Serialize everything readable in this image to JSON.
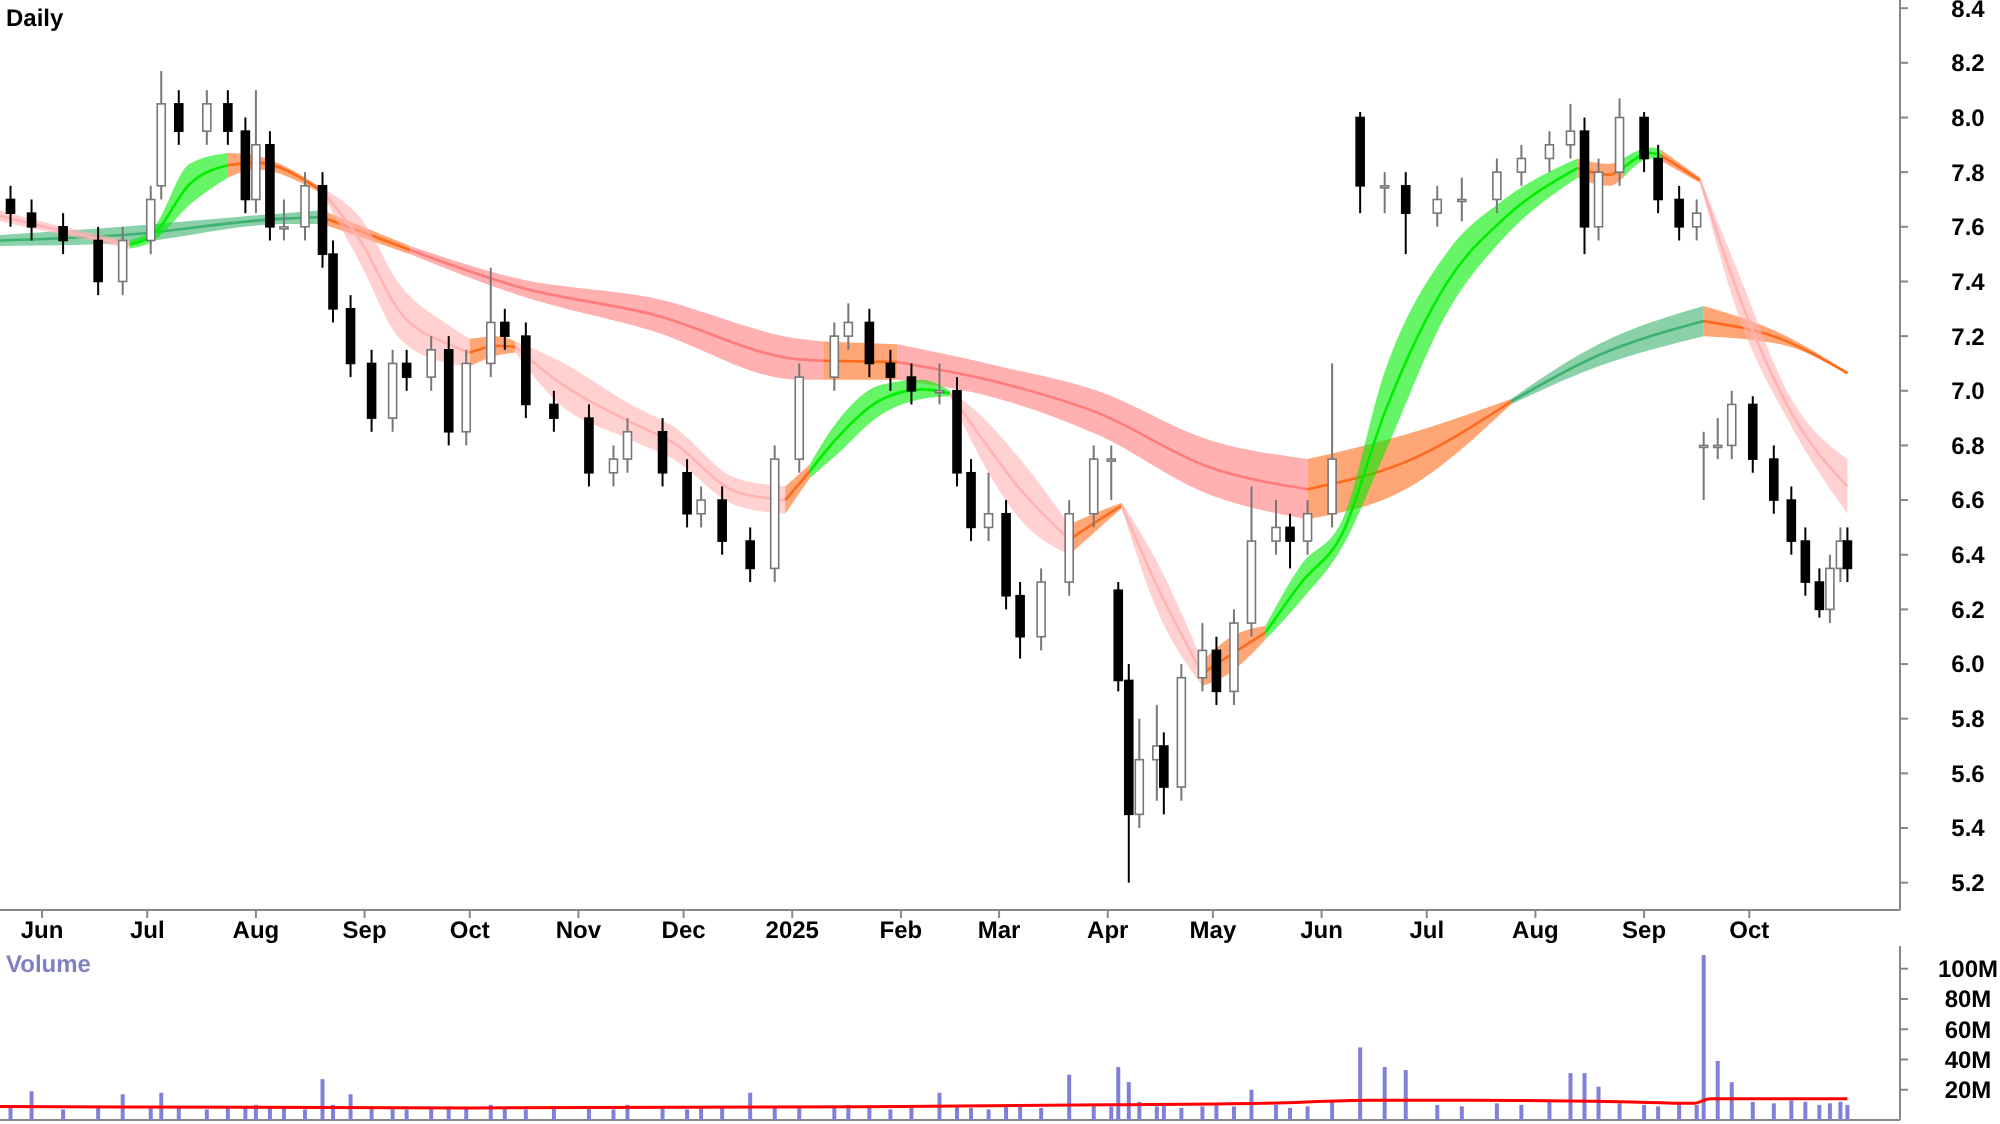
{
  "chart_data": [
    {
      "type": "candlestick",
      "title": "Daily",
      "x": [
        "2024-05-23",
        "2024-05-29",
        "2024-06-07",
        "2024-06-17",
        "2024-06-24",
        "2024-07-02",
        "2024-07-05",
        "2024-07-10",
        "2024-07-18",
        "2024-07-24",
        "2024-07-29",
        "2024-08-01",
        "2024-08-05",
        "2024-08-09",
        "2024-08-15",
        "2024-08-20",
        "2024-08-23",
        "2024-08-28",
        "2024-09-03",
        "2024-09-09",
        "2024-09-13",
        "2024-09-20",
        "2024-09-25",
        "2024-09-30",
        "2024-10-07",
        "2024-10-11",
        "2024-10-17",
        "2024-10-25",
        "2024-11-04",
        "2024-11-11",
        "2024-11-15",
        "2024-11-25",
        "2024-12-02",
        "2024-12-06",
        "2024-12-12",
        "2024-12-20",
        "2024-12-27",
        "2025-01-03",
        "2025-01-13",
        "2025-01-17",
        "2025-01-23",
        "2025-01-29",
        "2025-02-04",
        "2025-02-12",
        "2025-02-17",
        "2025-02-21",
        "2025-02-26",
        "2025-03-03",
        "2025-03-07",
        "2025-03-13",
        "2025-03-21",
        "2025-03-28",
        "2025-04-02",
        "2025-04-04",
        "2025-04-07",
        "2025-04-10",
        "2025-04-15",
        "2025-04-17",
        "2025-04-22",
        "2025-04-28",
        "2025-05-02",
        "2025-05-07",
        "2025-05-12",
        "2025-05-19",
        "2025-05-23",
        "2025-05-28",
        "2025-06-04",
        "2025-06-12",
        "2025-06-19",
        "2025-06-25",
        "2025-07-04",
        "2025-07-11",
        "2025-07-21",
        "2025-07-28",
        "2025-08-05",
        "2025-08-11",
        "2025-08-15",
        "2025-08-19",
        "2025-08-25",
        "2025-09-01",
        "2025-09-05",
        "2025-09-11",
        "2025-09-16",
        "2025-09-18",
        "2025-09-22",
        "2025-09-26",
        "2025-10-02",
        "2025-10-08",
        "2025-10-13",
        "2025-10-17",
        "2025-10-21",
        "2025-10-24",
        "2025-10-27",
        "2025-10-29"
      ],
      "ohlc": [
        [
          7.7,
          7.75,
          7.6,
          7.65
        ],
        [
          7.65,
          7.7,
          7.55,
          7.6
        ],
        [
          7.6,
          7.65,
          7.5,
          7.55
        ],
        [
          7.55,
          7.6,
          7.35,
          7.4
        ],
        [
          7.4,
          7.6,
          7.35,
          7.55
        ],
        [
          7.55,
          7.75,
          7.5,
          7.7
        ],
        [
          7.75,
          8.17,
          7.7,
          8.05
        ],
        [
          8.05,
          8.1,
          7.9,
          7.95
        ],
        [
          7.95,
          8.1,
          7.9,
          8.05
        ],
        [
          8.05,
          8.1,
          7.9,
          7.95
        ],
        [
          7.95,
          8.0,
          7.65,
          7.7
        ],
        [
          7.7,
          8.1,
          7.65,
          7.9
        ],
        [
          7.9,
          7.95,
          7.55,
          7.6
        ],
        [
          7.6,
          7.7,
          7.55,
          7.6
        ],
        [
          7.6,
          7.8,
          7.55,
          7.75
        ],
        [
          7.75,
          7.8,
          7.45,
          7.5
        ],
        [
          7.5,
          7.55,
          7.25,
          7.3
        ],
        [
          7.3,
          7.35,
          7.05,
          7.1
        ],
        [
          7.1,
          7.15,
          6.85,
          6.9
        ],
        [
          6.9,
          7.15,
          6.85,
          7.1
        ],
        [
          7.1,
          7.15,
          7.0,
          7.05
        ],
        [
          7.05,
          7.2,
          7.0,
          7.15
        ],
        [
          7.15,
          7.2,
          6.8,
          6.85
        ],
        [
          6.85,
          7.15,
          6.8,
          7.1
        ],
        [
          7.1,
          7.45,
          7.05,
          7.25
        ],
        [
          7.25,
          7.3,
          7.15,
          7.2
        ],
        [
          7.2,
          7.25,
          6.9,
          6.95
        ],
        [
          6.95,
          7.0,
          6.85,
          6.9
        ],
        [
          6.9,
          6.95,
          6.65,
          6.7
        ],
        [
          6.7,
          6.8,
          6.65,
          6.75
        ],
        [
          6.75,
          6.9,
          6.7,
          6.85
        ],
        [
          6.85,
          6.9,
          6.65,
          6.7
        ],
        [
          6.7,
          6.75,
          6.5,
          6.55
        ],
        [
          6.55,
          6.65,
          6.5,
          6.6
        ],
        [
          6.6,
          6.65,
          6.4,
          6.45
        ],
        [
          6.45,
          6.5,
          6.3,
          6.35
        ],
        [
          6.35,
          6.8,
          6.3,
          6.75
        ],
        [
          6.75,
          7.1,
          6.7,
          7.05
        ],
        [
          7.05,
          7.25,
          7.0,
          7.2
        ],
        [
          7.2,
          7.32,
          7.15,
          7.25
        ],
        [
          7.25,
          7.3,
          7.05,
          7.1
        ],
        [
          7.1,
          7.15,
          7.0,
          7.05
        ],
        [
          7.05,
          7.1,
          6.95,
          7.0
        ],
        [
          7.0,
          7.1,
          6.95,
          7.0
        ],
        [
          7.0,
          7.05,
          6.65,
          6.7
        ],
        [
          6.7,
          6.75,
          6.45,
          6.5
        ],
        [
          6.5,
          6.7,
          6.45,
          6.55
        ],
        [
          6.55,
          6.6,
          6.2,
          6.25
        ],
        [
          6.25,
          6.3,
          6.02,
          6.1
        ],
        [
          6.1,
          6.35,
          6.05,
          6.3
        ],
        [
          6.3,
          6.6,
          6.25,
          6.55
        ],
        [
          6.55,
          6.8,
          6.5,
          6.75
        ],
        [
          6.75,
          6.8,
          6.6,
          6.75
        ],
        [
          6.27,
          6.3,
          5.9,
          5.94
        ],
        [
          5.94,
          6.0,
          5.2,
          5.45
        ],
        [
          5.45,
          5.8,
          5.4,
          5.65
        ],
        [
          5.65,
          5.85,
          5.5,
          5.7
        ],
        [
          5.7,
          5.75,
          5.45,
          5.55
        ],
        [
          5.55,
          6.0,
          5.5,
          5.95
        ],
        [
          5.95,
          6.15,
          5.9,
          6.05
        ],
        [
          6.05,
          6.1,
          5.85,
          5.9
        ],
        [
          5.9,
          6.2,
          5.85,
          6.15
        ],
        [
          6.15,
          6.65,
          6.1,
          6.45
        ],
        [
          6.45,
          6.6,
          6.4,
          6.5
        ],
        [
          6.5,
          6.55,
          6.35,
          6.45
        ],
        [
          6.45,
          6.6,
          6.4,
          6.55
        ],
        [
          6.55,
          7.1,
          6.5,
          6.75
        ],
        [
          8.0,
          8.02,
          7.65,
          7.75
        ],
        [
          7.75,
          7.8,
          7.65,
          7.75
        ],
        [
          7.75,
          7.8,
          7.5,
          7.65
        ],
        [
          7.65,
          7.75,
          7.6,
          7.7
        ],
        [
          7.7,
          7.78,
          7.62,
          7.7
        ],
        [
          7.7,
          7.85,
          7.65,
          7.8
        ],
        [
          7.8,
          7.9,
          7.75,
          7.85
        ],
        [
          7.85,
          7.95,
          7.8,
          7.9
        ],
        [
          7.9,
          8.05,
          7.85,
          7.95
        ],
        [
          7.95,
          8.0,
          7.5,
          7.6
        ],
        [
          7.6,
          7.85,
          7.55,
          7.8
        ],
        [
          7.8,
          8.07,
          7.75,
          8.0
        ],
        [
          8.0,
          8.02,
          7.8,
          7.85
        ],
        [
          7.85,
          7.9,
          7.65,
          7.7
        ],
        [
          7.7,
          7.75,
          7.55,
          7.6
        ],
        [
          7.6,
          7.7,
          7.55,
          7.65
        ],
        [
          6.8,
          6.85,
          6.6,
          6.8
        ],
        [
          6.8,
          6.9,
          6.75,
          6.8
        ],
        [
          6.8,
          7.0,
          6.75,
          6.95
        ],
        [
          6.95,
          6.98,
          6.7,
          6.75
        ],
        [
          6.75,
          6.8,
          6.55,
          6.6
        ],
        [
          6.6,
          6.65,
          6.4,
          6.45
        ],
        [
          6.45,
          6.5,
          6.25,
          6.3
        ],
        [
          6.3,
          6.35,
          6.17,
          6.2
        ],
        [
          6.2,
          6.4,
          6.15,
          6.35
        ],
        [
          6.35,
          6.5,
          6.3,
          6.45
        ],
        [
          6.45,
          6.5,
          6.3,
          6.35
        ]
      ],
      "series": [
        {
          "type": "line",
          "color": "#3cb371",
          "x": [
            "2024-05-20",
            "2024-06-24",
            "2024-08-09",
            "2024-08-20"
          ],
          "values": [
            7.55,
            7.57,
            7.63,
            7.635
          ],
          "lower": [
            7.53,
            7.54,
            7.61,
            7.61
          ],
          "upper": [
            7.57,
            7.6,
            7.65,
            7.66
          ]
        },
        {
          "type": "line",
          "color": "#ff6a1a",
          "x": [
            "2024-08-20",
            "2024-09-14"
          ],
          "values": [
            7.635,
            7.515
          ],
          "lower": [
            7.61,
            7.5
          ],
          "upper": [
            7.66,
            7.53
          ]
        },
        {
          "type": "line",
          "color": "#ff7b7b",
          "x": [
            "2024-09-14",
            "2024-10-15",
            "2024-11-22",
            "2025-01-03",
            "2025-01-10"
          ],
          "values": [
            7.515,
            7.38,
            7.28,
            7.115,
            7.11
          ],
          "lower": [
            7.5,
            7.35,
            7.22,
            7.04,
            7.04
          ],
          "upper": [
            7.53,
            7.41,
            7.34,
            7.19,
            7.18
          ]
        },
        {
          "type": "line",
          "color": "#ff6a1a",
          "x": [
            "2025-01-10",
            "2025-01-31"
          ],
          "values": [
            7.11,
            7.105
          ],
          "lower": [
            7.04,
            7.04
          ],
          "upper": [
            7.18,
            7.17
          ]
        },
        {
          "type": "line",
          "color": "#ff7b7b",
          "x": [
            "2025-01-31",
            "2025-03-01",
            "2025-03-29",
            "2025-04-30",
            "2025-05-28"
          ],
          "values": [
            7.105,
            7.03,
            6.92,
            6.72,
            6.64
          ],
          "lower": [
            7.04,
            6.97,
            6.84,
            6.62,
            6.53
          ],
          "upper": [
            7.17,
            7.09,
            7.0,
            6.82,
            6.75
          ]
        },
        {
          "type": "line",
          "color": "#ff6a1a",
          "x": [
            "2025-05-28",
            "2025-06-25",
            "2025-07-25"
          ],
          "values": [
            6.64,
            6.74,
            6.96
          ],
          "lower": [
            6.53,
            6.64,
            6.95
          ],
          "upper": [
            6.75,
            6.84,
            6.97
          ]
        },
        {
          "type": "line",
          "color": "#3cb371",
          "x": [
            "2025-07-25",
            "2025-08-19",
            "2025-09-18"
          ],
          "values": [
            6.96,
            7.13,
            7.255
          ],
          "lower": [
            6.95,
            7.09,
            7.2
          ],
          "upper": [
            6.97,
            7.17,
            7.31
          ]
        },
        {
          "type": "line",
          "color": "#ff6a1a",
          "x": [
            "2025-09-18",
            "2025-10-10",
            "2025-10-29"
          ],
          "values": [
            7.255,
            7.19,
            7.065
          ],
          "lower": [
            7.2,
            7.17,
            7.06
          ],
          "upper": [
            7.31,
            7.21,
            7.07
          ]
        },
        {
          "type": "line",
          "color": "#ffb3b3",
          "x": [
            "2024-05-20",
            "2024-06-07",
            "2024-06-26"
          ],
          "values": [
            7.64,
            7.585,
            7.535
          ],
          "lower": [
            7.62,
            7.57,
            7.52
          ],
          "upper": [
            7.66,
            7.6,
            7.55
          ]
        },
        {
          "type": "line",
          "color": "#00ee00",
          "x": [
            "2024-06-26",
            "2024-07-03",
            "2024-07-13",
            "2024-07-24"
          ],
          "values": [
            7.535,
            7.575,
            7.755,
            7.825
          ],
          "lower": [
            7.52,
            7.55,
            7.68,
            7.78
          ],
          "upper": [
            7.55,
            7.6,
            7.83,
            7.87
          ]
        },
        {
          "type": "line",
          "color": "#ff6a1a",
          "x": [
            "2024-07-24",
            "2024-08-01",
            "2024-08-20"
          ],
          "values": [
            7.825,
            7.835,
            7.73
          ],
          "lower": [
            7.78,
            7.81,
            7.72
          ],
          "upper": [
            7.87,
            7.86,
            7.74
          ]
        },
        {
          "type": "line",
          "color": "#ffb3b3",
          "x": [
            "2024-08-20",
            "2024-08-31",
            "2024-09-11",
            "2024-09-25",
            "2024-10-01"
          ],
          "values": [
            7.73,
            7.545,
            7.29,
            7.17,
            7.14
          ],
          "lower": [
            7.72,
            7.46,
            7.19,
            7.1,
            7.09
          ],
          "upper": [
            7.74,
            7.63,
            7.39,
            7.24,
            7.19
          ]
        },
        {
          "type": "line",
          "color": "#ff6a1a",
          "x": [
            "2024-10-01",
            "2024-10-09",
            "2024-10-14"
          ],
          "values": [
            7.14,
            7.165,
            7.16
          ],
          "lower": [
            7.09,
            7.13,
            7.14
          ],
          "upper": [
            7.19,
            7.2,
            7.18
          ]
        },
        {
          "type": "line",
          "color": "#ffb3b3",
          "x": [
            "2024-10-14",
            "2024-10-25",
            "2024-11-16",
            "2024-11-28",
            "2024-12-16",
            "2024-12-30"
          ],
          "values": [
            7.16,
            7.045,
            6.885,
            6.81,
            6.63,
            6.6
          ],
          "lower": [
            7.14,
            6.97,
            6.82,
            6.75,
            6.58,
            6.55
          ],
          "upper": [
            7.18,
            7.12,
            6.95,
            6.87,
            6.68,
            6.65
          ]
        },
        {
          "type": "line",
          "color": "#ff6a1a",
          "x": [
            "2024-12-30",
            "2025-01-06"
          ],
          "values": [
            6.6,
            6.705
          ],
          "lower": [
            6.55,
            6.68
          ],
          "upper": [
            6.65,
            6.73
          ]
        },
        {
          "type": "line",
          "color": "#00ee00",
          "x": [
            "2025-01-06",
            "2025-01-14",
            "2025-01-26",
            "2025-02-07",
            "2025-02-15"
          ],
          "values": [
            6.705,
            6.83,
            6.965,
            7.005,
            6.99
          ],
          "lower": [
            6.68,
            6.77,
            6.91,
            6.97,
            6.98
          ],
          "upper": [
            6.73,
            6.89,
            7.02,
            7.04,
            7.0
          ]
        },
        {
          "type": "line",
          "color": "#ffb3b3",
          "x": [
            "2025-02-15",
            "2025-02-23",
            "2025-03-07",
            "2025-03-21"
          ],
          "values": [
            6.99,
            6.845,
            6.64,
            6.455
          ],
          "lower": [
            6.98,
            6.77,
            6.53,
            6.4
          ],
          "upper": [
            7.0,
            6.92,
            6.75,
            6.51
          ]
        },
        {
          "type": "line",
          "color": "#ff6a1a",
          "x": [
            "2025-03-21",
            "2025-03-28",
            "2025-04-05"
          ],
          "values": [
            6.455,
            6.515,
            6.58
          ],
          "lower": [
            6.4,
            6.48,
            6.57
          ],
          "upper": [
            6.51,
            6.55,
            6.59
          ]
        },
        {
          "type": "line",
          "color": "#ffb3b3",
          "x": [
            "2025-04-05",
            "2025-04-14",
            "2025-04-28"
          ],
          "values": [
            6.58,
            6.315,
            5.965
          ],
          "lower": [
            6.57,
            6.23,
            5.92
          ],
          "upper": [
            6.59,
            6.4,
            6.01
          ]
        },
        {
          "type": "line",
          "color": "#ff6a1a",
          "x": [
            "2025-04-28",
            "2025-05-05",
            "2025-05-16"
          ],
          "values": [
            5.965,
            6.025,
            6.115
          ],
          "lower": [
            5.92,
            5.96,
            6.09
          ],
          "upper": [
            6.01,
            6.09,
            6.14
          ]
        },
        {
          "type": "line",
          "color": "#00ee00",
          "x": [
            "2025-05-16",
            "2025-05-26",
            "2025-06-07",
            "2025-06-19",
            "2025-07-07",
            "2025-07-23",
            "2025-08-13"
          ],
          "values": [
            6.115,
            6.295,
            6.48,
            6.92,
            7.4,
            7.63,
            7.815
          ],
          "lower": [
            6.09,
            6.23,
            6.43,
            6.77,
            7.29,
            7.56,
            7.78
          ],
          "upper": [
            6.14,
            6.36,
            6.53,
            7.07,
            7.51,
            7.7,
            7.85
          ]
        },
        {
          "type": "line",
          "color": "#ff6a1a",
          "x": [
            "2025-08-13",
            "2025-08-22",
            "2025-08-26"
          ],
          "values": [
            7.815,
            7.79,
            7.815
          ],
          "lower": [
            7.78,
            7.75,
            7.78
          ],
          "upper": [
            7.85,
            7.83,
            7.85
          ]
        },
        {
          "type": "line",
          "color": "#00ee00",
          "x": [
            "2025-08-26",
            "2025-09-03",
            "2025-09-06"
          ],
          "values": [
            7.815,
            7.87,
            7.86
          ],
          "lower": [
            7.78,
            7.85,
            7.84
          ],
          "upper": [
            7.85,
            7.89,
            7.88
          ]
        },
        {
          "type": "line",
          "color": "#ff6a1a",
          "x": [
            "2025-09-06",
            "2025-09-17"
          ],
          "values": [
            7.86,
            7.77
          ],
          "lower": [
            7.84,
            7.76
          ],
          "upper": [
            7.88,
            7.78
          ]
        },
        {
          "type": "line",
          "color": "#ffb3b3",
          "x": [
            "2025-09-17",
            "2025-09-27",
            "2025-10-13",
            "2025-10-29"
          ],
          "values": [
            7.77,
            7.385,
            6.92,
            6.65
          ],
          "lower": [
            7.76,
            7.31,
            6.87,
            6.55
          ],
          "upper": [
            7.78,
            7.46,
            6.97,
            6.75
          ]
        }
      ],
      "xlim": [
        "2024-05-20",
        "2025-11-13"
      ],
      "xticks": [
        {
          "value": "2024-06-01",
          "label": "Jun"
        },
        {
          "value": "2024-07-01",
          "label": "Jul"
        },
        {
          "value": "2024-08-01",
          "label": "Aug"
        },
        {
          "value": "2024-09-01",
          "label": "Sep"
        },
        {
          "value": "2024-10-01",
          "label": "Oct"
        },
        {
          "value": "2024-11-01",
          "label": "Nov"
        },
        {
          "value": "2024-12-01",
          "label": "Dec"
        },
        {
          "value": "2025-01-01",
          "label": "2025"
        },
        {
          "value": "2025-02-01",
          "label": "Feb"
        },
        {
          "value": "2025-03-01",
          "label": "Mar"
        },
        {
          "value": "2025-04-01",
          "label": "Apr"
        },
        {
          "value": "2025-05-01",
          "label": "May"
        },
        {
          "value": "2025-06-01",
          "label": "Jun"
        },
        {
          "value": "2025-07-01",
          "label": "Jul"
        },
        {
          "value": "2025-08-01",
          "label": "Aug"
        },
        {
          "value": "2025-09-01",
          "label": "Sep"
        },
        {
          "value": "2025-10-01",
          "label": "Oct"
        }
      ],
      "ylim": [
        5.1,
        8.43
      ],
      "yticks": [
        5.2,
        5.4,
        5.6,
        5.8,
        {
          "value": 6,
          "label": "6.0"
        },
        6.2,
        6.4,
        6.6,
        6.8,
        {
          "value": 7,
          "label": "7.0"
        },
        7.2,
        7.4,
        7.6,
        7.8,
        {
          "value": 8,
          "label": "8.0"
        },
        8.2,
        8.4
      ]
    },
    {
      "type": "bar",
      "title": "Volume",
      "tick_labels": "y",
      "series": [
        {
          "type": "bar",
          "color": "#8080d8",
          "x": [
            "2024-05-23",
            "2024-05-29",
            "2024-06-07",
            "2024-06-17",
            "2024-06-24",
            "2024-07-02",
            "2024-07-05",
            "2024-07-10",
            "2024-07-18",
            "2024-07-24",
            "2024-07-29",
            "2024-08-01",
            "2024-08-05",
            "2024-08-09",
            "2024-08-15",
            "2024-08-20",
            "2024-08-23",
            "2024-08-28",
            "2024-09-03",
            "2024-09-09",
            "2024-09-13",
            "2024-09-20",
            "2024-09-25",
            "2024-09-30",
            "2024-10-07",
            "2024-10-11",
            "2024-10-17",
            "2024-10-25",
            "2024-11-04",
            "2024-11-11",
            "2024-11-15",
            "2024-11-25",
            "2024-12-02",
            "2024-12-06",
            "2024-12-12",
            "2024-12-20",
            "2024-12-27",
            "2025-01-03",
            "2025-01-13",
            "2025-01-17",
            "2025-01-23",
            "2025-01-29",
            "2025-02-04",
            "2025-02-12",
            "2025-02-17",
            "2025-02-21",
            "2025-02-26",
            "2025-03-03",
            "2025-03-07",
            "2025-03-13",
            "2025-03-21",
            "2025-03-28",
            "2025-04-02",
            "2025-04-04",
            "2025-04-07",
            "2025-04-10",
            "2025-04-15",
            "2025-04-17",
            "2025-04-22",
            "2025-04-28",
            "2025-05-02",
            "2025-05-07",
            "2025-05-12",
            "2025-05-19",
            "2025-05-23",
            "2025-05-28",
            "2025-06-04",
            "2025-06-12",
            "2025-06-19",
            "2025-06-25",
            "2025-07-04",
            "2025-07-11",
            "2025-07-21",
            "2025-07-28",
            "2025-08-05",
            "2025-08-11",
            "2025-08-15",
            "2025-08-19",
            "2025-08-25",
            "2025-09-01",
            "2025-09-05",
            "2025-09-11",
            "2025-09-16",
            "2025-09-18",
            "2025-09-22",
            "2025-09-26",
            "2025-10-02",
            "2025-10-08",
            "2025-10-13",
            "2025-10-17",
            "2025-10-21",
            "2025-10-24",
            "2025-10-27",
            "2025-10-29"
          ],
          "values": [
            8,
            19,
            7,
            8,
            17,
            9,
            18,
            8,
            7,
            9,
            8,
            10,
            9,
            8,
            7,
            27,
            10,
            17,
            9,
            8,
            7,
            8,
            9,
            8,
            10,
            8,
            7,
            9,
            8,
            7,
            10,
            8,
            7,
            8,
            9,
            18,
            8,
            9,
            8,
            10,
            8,
            7,
            8,
            18,
            9,
            8,
            7,
            9,
            10,
            8,
            30,
            10,
            9,
            35,
            25,
            12,
            9,
            10,
            8,
            9,
            10,
            9,
            20,
            10,
            8,
            9,
            12,
            48,
            35,
            33,
            10,
            9,
            11,
            10,
            12,
            31,
            31,
            22,
            11,
            10,
            9,
            12,
            10,
            109,
            39,
            25,
            12,
            11,
            13,
            12,
            10,
            11,
            12,
            10
          ]
        },
        {
          "type": "line",
          "color": "#ff0000",
          "x": [
            "2024-05-20",
            "2024-10-01",
            "2025-02-01",
            "2025-04-01",
            "2025-05-15",
            "2025-06-15",
            "2025-07-15",
            "2025-08-25",
            "2025-09-15",
            "2025-09-20",
            "2025-10-29"
          ],
          "values": [
            9,
            8,
            9,
            10,
            11,
            13,
            13,
            12,
            11,
            14,
            14
          ]
        }
      ],
      "xlim": [
        "2024-05-20",
        "2025-11-13"
      ],
      "ylim": [
        0,
        115
      ],
      "yticks": [
        {
          "value": 20,
          "label": "20M"
        },
        {
          "value": 40,
          "label": "40M"
        },
        {
          "value": 60,
          "label": "60M"
        },
        {
          "value": 80,
          "label": "80M"
        },
        {
          "value": 100,
          "label": "100M"
        }
      ]
    }
  ]
}
